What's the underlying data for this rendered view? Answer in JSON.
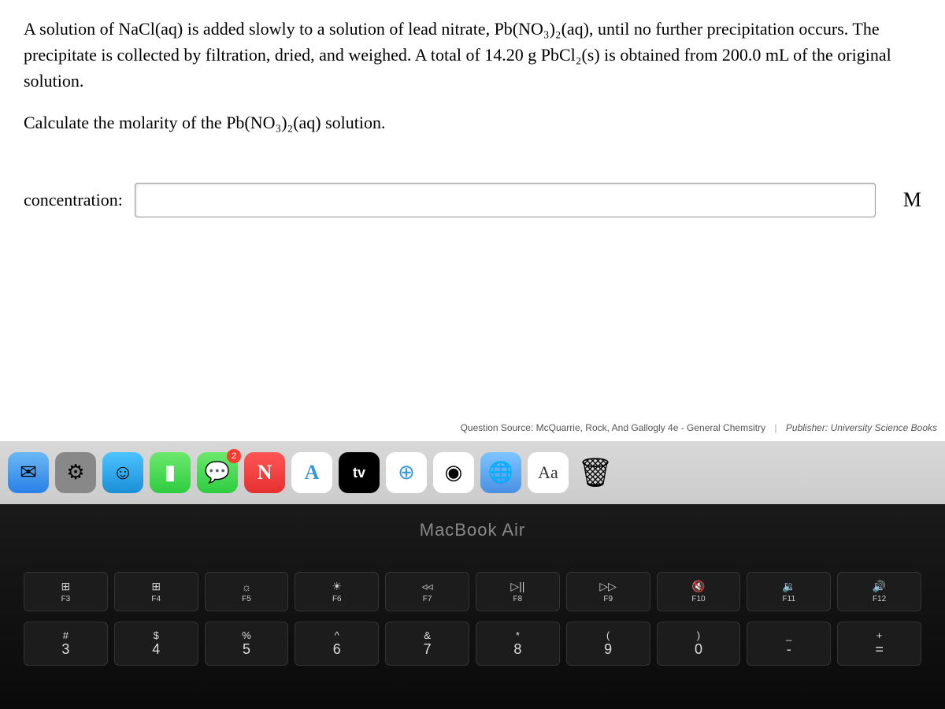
{
  "problem": {
    "paragraph": "A solution of NaCl(aq) is added slowly to a solution of lead nitrate, Pb(NO₃)₂(aq), until no further precipitation occurs. The precipitate is collected by filtration, dried, and weighed. A total of 14.20 g PbCl₂(s) is obtained from 200.0 mL of the original solution.",
    "calculate": "Calculate the molarity of the Pb(NO₃)₂(aq) solution.",
    "answer_label": "concentration:",
    "answer_value": "",
    "unit": "M"
  },
  "source": {
    "question_source_label": "Question Source:",
    "question_source": "McQuarrie, Rock, And Gallogly 4e - General Chemsitry",
    "publisher_label": "Publisher:",
    "publisher": "University Science Books"
  },
  "dock": {
    "mail": "✉",
    "settings": "⚙",
    "finder": "☺",
    "facetime": "▮",
    "messages": "💬",
    "messages_badge": "2",
    "news": "N",
    "appstore": "A",
    "tv": "tv",
    "safari": "⊕",
    "chrome": "◉",
    "earth": "🌐",
    "lookup": "Aa",
    "trash": "🗑"
  },
  "laptop": {
    "model": "MacBook Air",
    "fn_keys": [
      {
        "sym": "⊞",
        "label": "F3"
      },
      {
        "sym": "⊞",
        "label": "F4"
      },
      {
        "sym": "☼",
        "label": "F5"
      },
      {
        "sym": "☀",
        "label": "F6"
      },
      {
        "sym": "◃◃",
        "label": "F7"
      },
      {
        "sym": "▷||",
        "label": "F8"
      },
      {
        "sym": "▷▷",
        "label": "F9"
      },
      {
        "sym": "🔇",
        "label": "F10"
      },
      {
        "sym": "🔉",
        "label": "F11"
      },
      {
        "sym": "🔊",
        "label": "F12"
      }
    ],
    "num_keys": [
      {
        "upper": "#",
        "lower": "3"
      },
      {
        "upper": "$",
        "lower": "4"
      },
      {
        "upper": "%",
        "lower": "5"
      },
      {
        "upper": "^",
        "lower": "6"
      },
      {
        "upper": "&",
        "lower": "7"
      },
      {
        "upper": "*",
        "lower": "8"
      },
      {
        "upper": "(",
        "lower": "9"
      },
      {
        "upper": ")",
        "lower": "0"
      },
      {
        "upper": "_",
        "lower": "-"
      },
      {
        "upper": "+",
        "lower": "="
      }
    ]
  }
}
